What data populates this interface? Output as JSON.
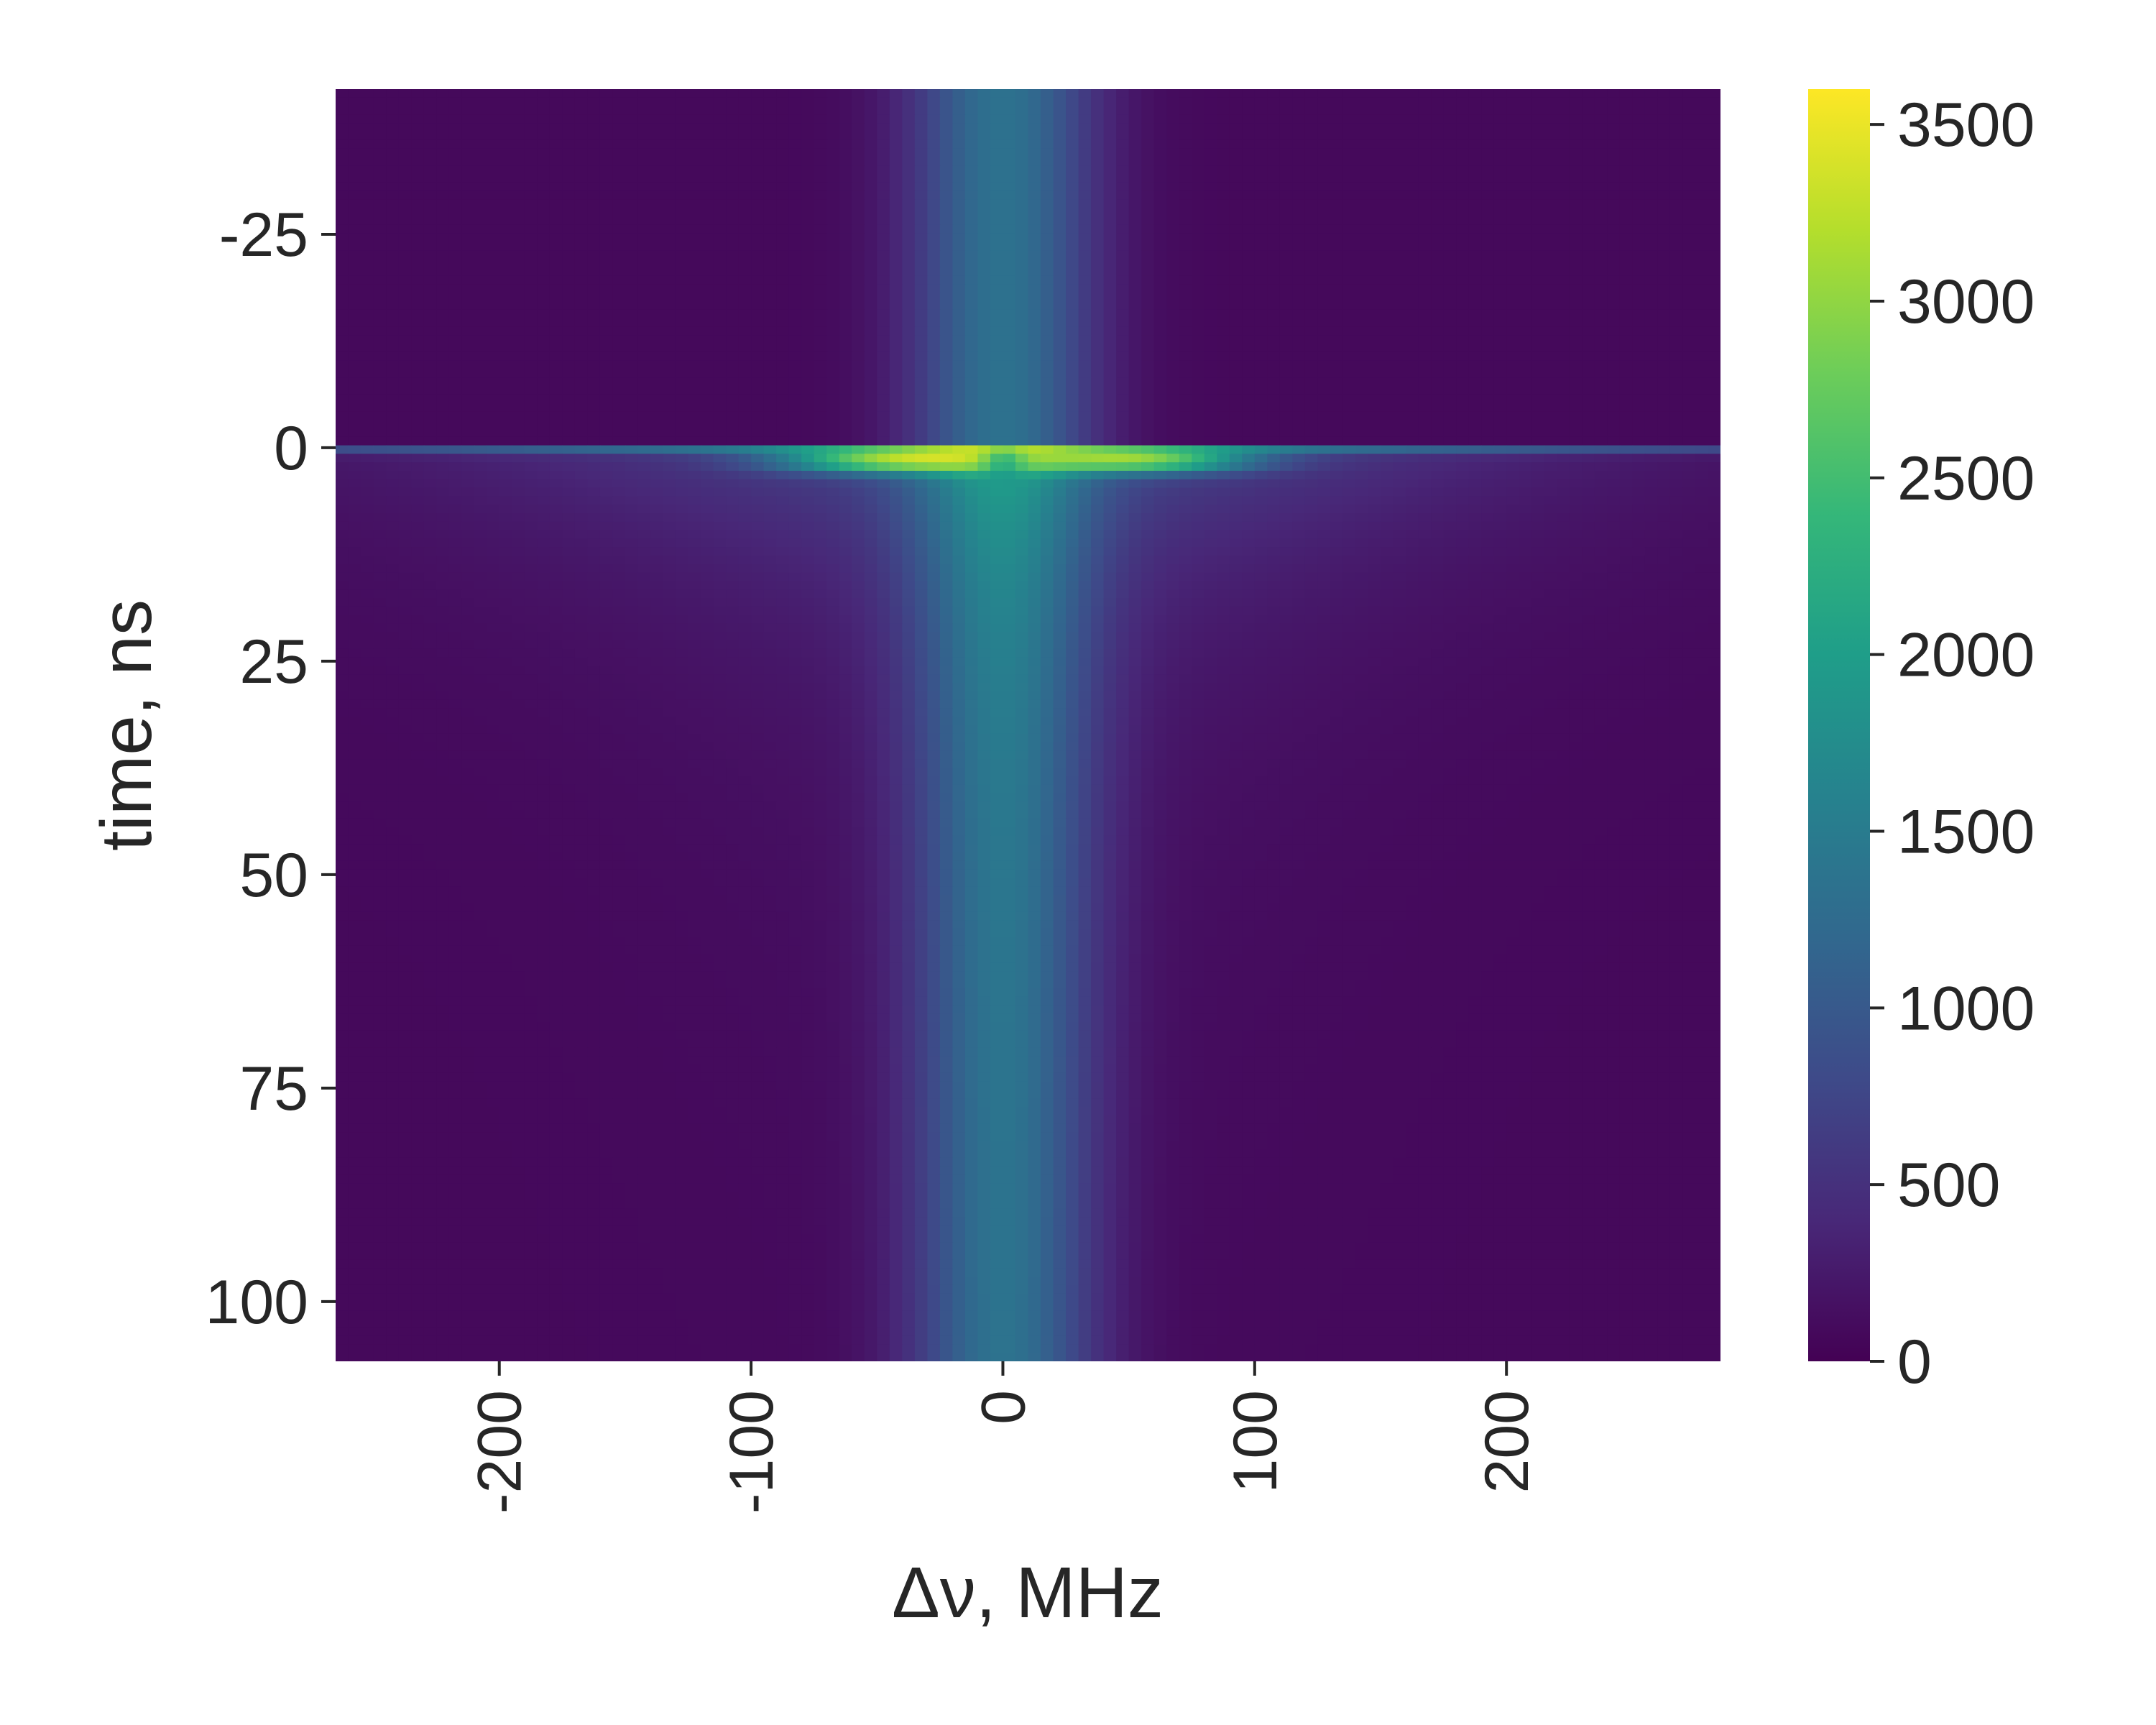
{
  "chart_data": {
    "type": "heatmap",
    "title": "",
    "xlabel": "Δν, MHz",
    "ylabel": "time, ns",
    "x_range": [
      -265,
      285
    ],
    "y_range": [
      -42,
      107
    ],
    "y_inverted": true,
    "x_ticks": [
      -200,
      -100,
      0,
      100,
      200
    ],
    "x_tick_labels": [
      "-200",
      "-100",
      "0",
      "100",
      "200"
    ],
    "y_ticks": [
      -25,
      0,
      25,
      50,
      75,
      100
    ],
    "y_tick_labels": [
      "-25",
      "0",
      "25",
      "50",
      "75",
      "100"
    ],
    "colormap": "viridis",
    "colorbar": {
      "range": [
        0,
        3600
      ],
      "ticks": [
        0,
        500,
        1000,
        1500,
        2000,
        2500,
        3000,
        3500
      ],
      "tick_labels": [
        "0",
        "500",
        "1000",
        "1500",
        "2000",
        "2500",
        "3000",
        "3500"
      ]
    },
    "grid": false,
    "features": [
      {
        "description": "central vertical band at Δν≈0",
        "x_center": 0,
        "x_width": 25,
        "value_before_0ns": 1350,
        "value_after_0ns": 1350
      },
      {
        "description": "pulse onset line at t≈0 ns",
        "y": 0,
        "value": 1700
      },
      {
        "description": "bright lobes just after t=0",
        "y": 1.5,
        "x_centers": [
          -45,
          55
        ],
        "peak_value": 3600
      },
      {
        "description": "broad decaying glow after t=0",
        "y_decay_ns": 12,
        "x_width": 170,
        "value": 1100
      },
      {
        "description": "background level",
        "value": 80
      }
    ],
    "series": []
  }
}
